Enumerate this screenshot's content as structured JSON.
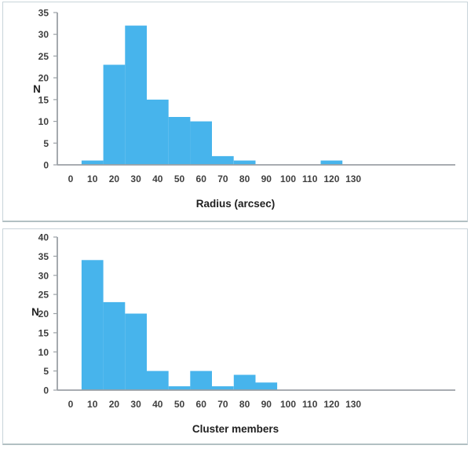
{
  "colors": {
    "bar": "#47b4ec",
    "axis": "#9ba1a6",
    "tick_text": "#3f3f3f",
    "title_text": "#1f1f1f",
    "panel_border": "#c9d4da",
    "panel_border_bottom": "#b2c0c3",
    "background": "#ffffff"
  },
  "chart_data": [
    {
      "type": "bar",
      "title": "",
      "xlabel": "Radius (arcsec)",
      "ylabel": "N",
      "categories": [
        10,
        20,
        30,
        40,
        50,
        60,
        70,
        80,
        90,
        100,
        110,
        120,
        130
      ],
      "values": [
        1,
        23,
        32,
        15,
        11,
        10,
        2,
        1,
        0,
        0,
        0,
        1,
        0
      ],
      "x_ticks": [
        "0",
        "10",
        "20",
        "30",
        "40",
        "50",
        "60",
        "70",
        "80",
        "90",
        "100",
        "110",
        "120",
        "130"
      ],
      "y_ticks": [
        "0",
        "5",
        "10",
        "15",
        "20",
        "25",
        "30",
        "35"
      ],
      "ylim": [
        0,
        35
      ],
      "bin_width": 10,
      "grid": false,
      "legend": false
    },
    {
      "type": "bar",
      "title": "",
      "xlabel": "Cluster members",
      "ylabel": "N",
      "categories": [
        10,
        20,
        30,
        40,
        50,
        60,
        70,
        80,
        90,
        100,
        110,
        120,
        130
      ],
      "values": [
        34,
        23,
        20,
        5,
        1,
        5,
        1,
        4,
        2,
        0,
        0,
        0,
        0
      ],
      "x_ticks": [
        "0",
        "10",
        "20",
        "30",
        "40",
        "50",
        "60",
        "70",
        "80",
        "90",
        "100",
        "110",
        "120",
        "130"
      ],
      "y_ticks": [
        "0",
        "5",
        "10",
        "15",
        "20",
        "25",
        "30",
        "35",
        "40"
      ],
      "ylim": [
        0,
        40
      ],
      "bin_width": 10,
      "grid": false,
      "legend": false
    }
  ]
}
